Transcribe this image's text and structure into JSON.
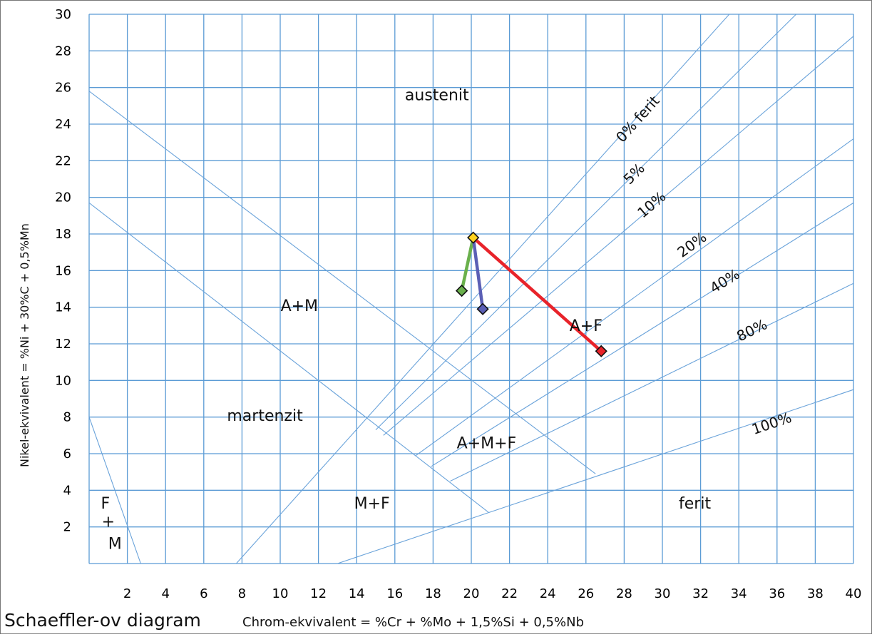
{
  "chart_data": {
    "type": "scatter",
    "title": "Schaeffler-ov diagram",
    "xlabel": "Chrom-ekvivalent = %Cr + %Mo + 1,5%Si + 0,5%Nb",
    "ylabel": "Nikel-ekvivalent = %Ni + 30%C + 0,5%Mn",
    "xlim": [
      0,
      40
    ],
    "ylim": [
      0,
      30
    ],
    "x_ticks": [
      "2",
      "4",
      "6",
      "8",
      "10",
      "12",
      "14",
      "16",
      "18",
      "20",
      "22",
      "24",
      "26",
      "28",
      "30",
      "32",
      "34",
      "36",
      "38",
      "40"
    ],
    "y_ticks": [
      "2",
      "4",
      "6",
      "8",
      "10",
      "12",
      "14",
      "16",
      "18",
      "20",
      "22",
      "24",
      "26",
      "28",
      "30"
    ],
    "grid": true,
    "regions": [
      {
        "label": "austenit",
        "x": 18.2,
        "y": 25.3
      },
      {
        "label": "A+M",
        "x": 11.0,
        "y": 13.8
      },
      {
        "label": "martenzit",
        "x": 9.2,
        "y": 7.8
      },
      {
        "label": "A+F",
        "x": 26.0,
        "y": 12.7
      },
      {
        "label": "A+M+F",
        "x": 20.8,
        "y": 6.3
      },
      {
        "label": "M+F",
        "x": 14.8,
        "y": 3.0
      },
      {
        "label": "ferit",
        "x": 31.7,
        "y": 3.0
      },
      {
        "label": "F",
        "x": 0.85,
        "y": 3.0
      },
      {
        "label": "+",
        "x": 1.0,
        "y": 2.0
      },
      {
        "label": "M",
        "x": 1.35,
        "y": 0.8
      }
    ],
    "boundaries": [
      {
        "name": "0% ferit",
        "from": [
          7.7,
          0
        ],
        "to": [
          33.5,
          30
        ]
      },
      {
        "name": "5%",
        "from": [
          15.0,
          7.3
        ],
        "to": [
          37.0,
          30
        ]
      },
      {
        "name": "10%",
        "from": [
          15.4,
          7.0
        ],
        "to": [
          40,
          28.8
        ]
      },
      {
        "name": "20%",
        "from": [
          17.1,
          5.9
        ],
        "to": [
          40,
          23.2
        ]
      },
      {
        "name": "40%",
        "from": [
          17.9,
          5.3
        ],
        "to": [
          40,
          19.7
        ]
      },
      {
        "name": "80%",
        "from": [
          18.9,
          4.5
        ],
        "to": [
          40,
          15.3
        ]
      },
      {
        "name": "100%",
        "from": [
          13.0,
          0
        ],
        "to": [
          40,
          9.5
        ]
      },
      {
        "name": "A/A+M",
        "from": [
          0,
          25.8
        ],
        "to": [
          26.5,
          4.9
        ]
      },
      {
        "name": "A+M/M",
        "from": [
          0,
          19.7
        ],
        "to": [
          20.9,
          2.8
        ]
      },
      {
        "name": "M/F+M",
        "from": [
          0,
          8.0
        ],
        "to": [
          2.7,
          0
        ]
      }
    ],
    "boundary_labels": [
      {
        "text": "0% ferit",
        "x": 28.9,
        "y": 24.1
      },
      {
        "text": "5%",
        "x": 28.7,
        "y": 21.1
      },
      {
        "text": "10%",
        "x": 29.6,
        "y": 19.4
      },
      {
        "text": "20%",
        "x": 31.7,
        "y": 17.2
      },
      {
        "text": "40%",
        "x": 33.4,
        "y": 15.2
      },
      {
        "text": "80%",
        "x": 34.8,
        "y": 12.5
      },
      {
        "text": "100%",
        "x": 35.8,
        "y": 7.4
      }
    ],
    "points": [
      {
        "name": "yellow",
        "x": 20.1,
        "y": 17.8,
        "color": "#ffd21e"
      },
      {
        "name": "green",
        "x": 19.5,
        "y": 14.9,
        "color": "#6ab04c"
      },
      {
        "name": "blue",
        "x": 20.6,
        "y": 13.9,
        "color": "#5b5fb5"
      },
      {
        "name": "red",
        "x": 26.8,
        "y": 11.6,
        "color": "#e8232a"
      }
    ],
    "connections": [
      {
        "from": "yellow",
        "to": "green",
        "color": "#6ab04c"
      },
      {
        "from": "yellow",
        "to": "blue",
        "color": "#5b5fb5"
      },
      {
        "from": "yellow",
        "to": "red",
        "color": "#e8232a"
      }
    ]
  }
}
